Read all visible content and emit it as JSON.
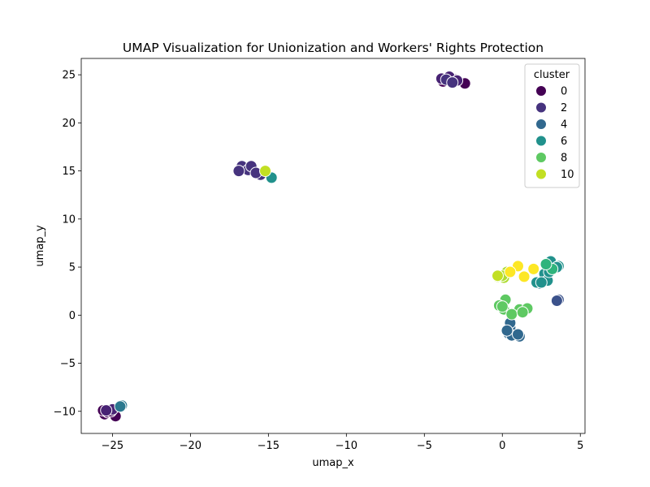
{
  "chart_data": {
    "type": "scatter",
    "title": "UMAP Visualization for Unionization and Workers' Rights Protection",
    "xlabel": "umap_x",
    "ylabel": "umap_y",
    "xlim": [
      -27,
      5.3
    ],
    "ylim": [
      -12.3,
      26.7
    ],
    "xticks": [
      -25,
      -20,
      -15,
      -10,
      -5,
      0,
      5
    ],
    "yticks": [
      -10,
      -5,
      0,
      5,
      10,
      15,
      20,
      25
    ],
    "xtick_labels": [
      "−25",
      "−20",
      "−15",
      "−10",
      "−5",
      "0",
      "5"
    ],
    "ytick_labels": [
      "−10",
      "−5",
      "0",
      "5",
      "10",
      "15",
      "20",
      "25"
    ],
    "grid": false,
    "legend": {
      "title": "cluster",
      "placement": "top-right",
      "entries": [
        {
          "label": "0",
          "color": "#440154"
        },
        {
          "label": "2",
          "color": "#46337e"
        },
        {
          "label": "4",
          "color": "#31688e"
        },
        {
          "label": "6",
          "color": "#21918c"
        },
        {
          "label": "8",
          "color": "#5ec962"
        },
        {
          "label": "10",
          "color": "#c2df23"
        }
      ]
    },
    "series": [
      {
        "cluster": 0,
        "color": "#440154",
        "points": [
          [
            -3.8,
            24.3
          ],
          [
            -2.4,
            24.1
          ],
          [
            -3.5,
            24.7
          ],
          [
            -3.0,
            24.5
          ],
          [
            -25.5,
            -10.3
          ],
          [
            -25.3,
            -10.1
          ],
          [
            -24.8,
            -10.5
          ],
          [
            -25.1,
            -10.0
          ],
          [
            -25.6,
            -9.9
          ]
        ]
      },
      {
        "cluster": 1,
        "color": "#482374",
        "points": [
          [
            -3.4,
            24.8
          ],
          [
            -2.9,
            24.4
          ],
          [
            -3.9,
            24.6
          ],
          [
            -25.0,
            -9.8
          ],
          [
            -25.4,
            -9.9
          ]
        ]
      },
      {
        "cluster": 2,
        "color": "#46337e",
        "points": [
          [
            -16.7,
            15.5
          ],
          [
            -16.3,
            15.1
          ],
          [
            -15.5,
            14.6
          ],
          [
            -16.9,
            15.0
          ],
          [
            -16.1,
            15.5
          ],
          [
            -15.8,
            14.8
          ],
          [
            -3.6,
            24.5
          ],
          [
            -3.2,
            24.2
          ]
        ]
      },
      {
        "cluster": 3,
        "color": "#3b528b",
        "points": [
          [
            3.6,
            1.6
          ],
          [
            3.5,
            1.5
          ]
        ]
      },
      {
        "cluster": 4,
        "color": "#31688e",
        "points": [
          [
            0.5,
            -1.3
          ],
          [
            1.1,
            -2.2
          ],
          [
            0.4,
            -1.9
          ],
          [
            0.6,
            -2.1
          ],
          [
            0.5,
            -0.8
          ],
          [
            0.3,
            -1.6
          ],
          [
            1.0,
            -2.0
          ]
        ]
      },
      {
        "cluster": 5,
        "color": "#2a788e",
        "points": [
          [
            -24.4,
            -9.4
          ],
          [
            -24.5,
            -9.5
          ],
          [
            2.4,
            3.3
          ],
          [
            2.7,
            3.5
          ]
        ]
      },
      {
        "cluster": 6,
        "color": "#21918c",
        "points": [
          [
            -14.8,
            14.3
          ],
          [
            2.7,
            4.3
          ],
          [
            2.2,
            3.4
          ],
          [
            3.1,
            5.6
          ],
          [
            2.9,
            3.6
          ],
          [
            3.6,
            5.1
          ],
          [
            2.5,
            3.4
          ],
          [
            3.5,
            5.0
          ],
          [
            3.0,
            4.5
          ]
        ]
      },
      {
        "cluster": 7,
        "color": "#2fb47c",
        "points": [
          [
            3.2,
            4.8
          ],
          [
            2.8,
            5.3
          ]
        ]
      },
      {
        "cluster": 8,
        "color": "#5ec962",
        "points": [
          [
            0.2,
            1.6
          ],
          [
            -0.2,
            1.0
          ],
          [
            1.1,
            0.6
          ],
          [
            0.1,
            0.6
          ],
          [
            0.6,
            0.1
          ],
          [
            1.6,
            0.7
          ],
          [
            1.3,
            0.3
          ],
          [
            0.0,
            0.9
          ]
        ]
      },
      {
        "cluster": 9,
        "color": "#addc30",
        "points": [
          [
            0.1,
            3.9
          ],
          [
            0.3,
            4.5
          ],
          [
            -0.3,
            4.0
          ],
          [
            0.0,
            4.1
          ]
        ]
      },
      {
        "cluster": 10,
        "color": "#c2df23",
        "points": [
          [
            -15.2,
            15.0
          ],
          [
            -0.3,
            4.1
          ]
        ]
      },
      {
        "cluster": 11,
        "color": "#fde725",
        "points": [
          [
            1.0,
            5.1
          ],
          [
            2.0,
            4.8
          ],
          [
            1.4,
            4.0
          ],
          [
            0.5,
            4.5
          ]
        ]
      }
    ]
  }
}
